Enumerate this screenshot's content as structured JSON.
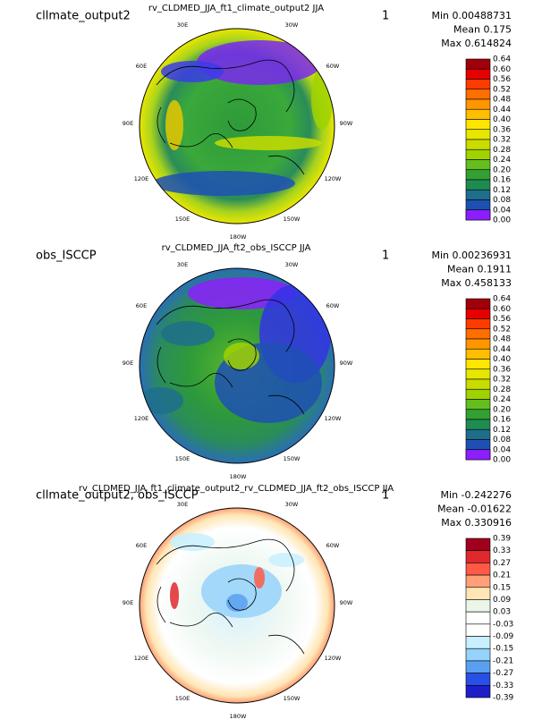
{
  "longitude_labels": [
    "30E",
    "30W",
    "60E",
    "60W",
    "90E",
    "90W",
    "120E",
    "120W",
    "150E",
    "150W",
    "180W"
  ],
  "panels": [
    {
      "title": "rv_CLDMED_JJA_ft1_climate_output2  JJA",
      "left_label": "cllmate_output2",
      "right_label": "1",
      "stats": [
        "Min 0.00488731",
        "Mean 0.175",
        "Max 0.614824"
      ],
      "colorbar": {
        "labels": [
          "0.64",
          "0.60",
          "0.56",
          "0.52",
          "0.48",
          "0.44",
          "0.40",
          "0.36",
          "0.32",
          "0.28",
          "0.24",
          "0.20",
          "0.16",
          "0.12",
          "0.08",
          "0.04",
          "0.00"
        ],
        "colors": [
          "#a0000a",
          "#e60000",
          "#ff3c00",
          "#ff6e00",
          "#ff9600",
          "#ffbe00",
          "#ffe600",
          "#e6e600",
          "#c8dc00",
          "#a0d200",
          "#64be1e",
          "#32a032",
          "#1e8c50",
          "#1e6e8c",
          "#1e50b4",
          "#3232e6"
        ],
        "bottom_color": "#8c1eff"
      }
    },
    {
      "title": "rv_CLDMED_JJA_ft2_obs_ISCCP  JJA",
      "left_label": "obs_ISCCP",
      "right_label": "1",
      "stats": [
        "Min 0.00236931",
        "Mean 0.1911",
        "Max 0.458133"
      ],
      "colorbar": {
        "labels": [
          "0.64",
          "0.60",
          "0.56",
          "0.52",
          "0.48",
          "0.44",
          "0.40",
          "0.36",
          "0.32",
          "0.28",
          "0.24",
          "0.20",
          "0.16",
          "0.12",
          "0.08",
          "0.04",
          "0.00"
        ],
        "colors": [
          "#a0000a",
          "#e60000",
          "#ff3c00",
          "#ff6e00",
          "#ff9600",
          "#ffbe00",
          "#ffe600",
          "#e6e600",
          "#c8dc00",
          "#a0d200",
          "#64be1e",
          "#32a032",
          "#1e8c50",
          "#1e6e8c",
          "#1e50b4",
          "#3232e6"
        ],
        "bottom_color": "#8c1eff"
      }
    },
    {
      "title": "rv_CLDMED_JJA_ft1_climate_output2_rv_CLDMED_JJA_ft2_obs_ISCCP  JJA",
      "left_label": "cllmate_output2, obs_ISCCP",
      "right_label": "1",
      "stats": [
        "Min -0.242276",
        "Mean -0.01622",
        "Max 0.330916"
      ],
      "colorbar": {
        "labels": [
          "0.39",
          "0.33",
          "0.27",
          "0.21",
          "0.15",
          "0.09",
          "0.03",
          "-0.03",
          "-0.09",
          "-0.15",
          "-0.21",
          "-0.27",
          "-0.33",
          "-0.39"
        ],
        "colors": [
          "#a0001e",
          "#e1282d",
          "#ff5a46",
          "#ffa078",
          "#ffe6b4",
          "#eaf6ea",
          "#ffffff",
          "#ffffff",
          "#c8f0ff",
          "#96d2fa",
          "#5aa0f0",
          "#2850e6"
        ],
        "bottom_color": "#1e1ec8"
      }
    }
  ]
}
